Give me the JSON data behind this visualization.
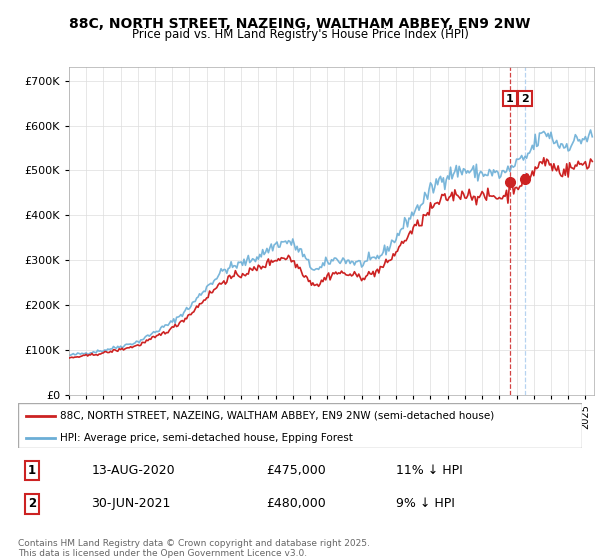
{
  "title": "88C, NORTH STREET, NAZEING, WALTHAM ABBEY, EN9 2NW",
  "subtitle": "Price paid vs. HM Land Registry's House Price Index (HPI)",
  "hpi_color": "#6baed6",
  "price_color": "#cc2222",
  "vline1_color": "#cc2222",
  "vline2_color": "#aaccee",
  "ylim": [
    0,
    730000
  ],
  "yticks": [
    0,
    100000,
    200000,
    300000,
    400000,
    500000,
    600000,
    700000
  ],
  "xmin": 1995,
  "xmax": 2025.5,
  "sale1": {
    "date": "13-AUG-2020",
    "price": 475000,
    "label": "1",
    "pct": "11% ↓ HPI",
    "x": 2020.617
  },
  "sale2": {
    "date": "30-JUN-2021",
    "price": 480000,
    "label": "2",
    "pct": "9% ↓ HPI",
    "x": 2021.497
  },
  "legend_line1": "88C, NORTH STREET, NAZEING, WALTHAM ABBEY, EN9 2NW (semi-detached house)",
  "legend_line2": "HPI: Average price, semi-detached house, Epping Forest",
  "footer": "Contains HM Land Registry data © Crown copyright and database right 2025.\nThis data is licensed under the Open Government Licence v3.0."
}
